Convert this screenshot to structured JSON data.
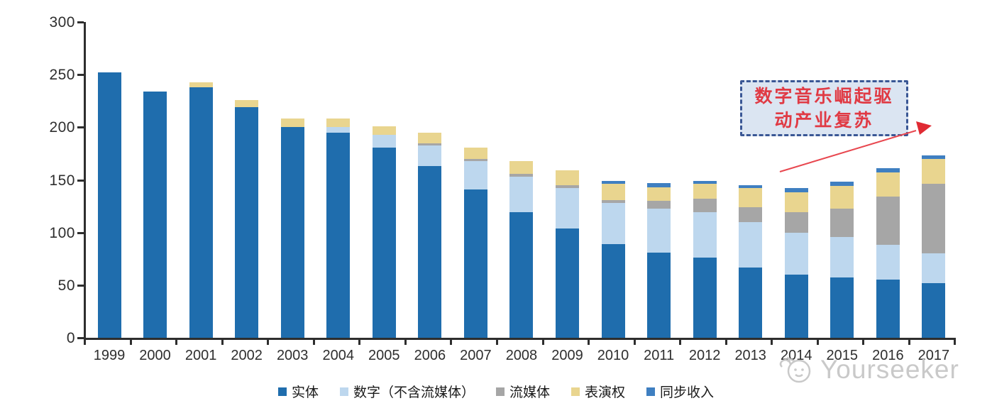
{
  "chart_data": {
    "type": "bar",
    "stacked": true,
    "title": "",
    "xlabel": "",
    "ylabel": "",
    "ylim": [
      0,
      300
    ],
    "yticks": [
      0,
      50,
      100,
      150,
      200,
      250,
      300
    ],
    "grid": false,
    "legend_position": "bottom",
    "categories": [
      "1999",
      "2000",
      "2001",
      "2002",
      "2003",
      "2004",
      "2005",
      "2006",
      "2007",
      "2008",
      "2009",
      "2010",
      "2011",
      "2012",
      "2013",
      "2014",
      "2015",
      "2016",
      "2017"
    ],
    "series": [
      {
        "name": "实体",
        "color": "#1f6dad",
        "values": [
          252,
          234,
          238,
          219,
          200,
          195,
          181,
          163,
          141,
          119,
          104,
          89,
          81,
          76,
          67,
          60,
          57,
          55,
          52
        ]
      },
      {
        "name": "数字（不含流媒体）",
        "color": "#bdd7ee",
        "values": [
          0,
          0,
          0,
          0,
          0,
          5,
          12,
          20,
          27,
          34,
          38,
          39,
          42,
          43,
          43,
          40,
          39,
          33,
          28
        ]
      },
      {
        "name": "流媒体",
        "color": "#a6a6a6",
        "values": [
          0,
          0,
          0,
          0,
          0,
          0,
          0,
          2,
          2,
          3,
          3,
          3,
          7,
          13,
          14,
          19,
          27,
          46,
          66
        ]
      },
      {
        "name": "表演权",
        "color": "#e9d58f",
        "values": [
          0,
          0,
          5,
          7,
          8,
          8,
          8,
          10,
          11,
          12,
          14,
          15,
          13,
          14,
          18,
          19,
          21,
          23,
          24
        ]
      },
      {
        "name": "同步收入",
        "color": "#3f7fc1",
        "values": [
          0,
          0,
          0,
          0,
          0,
          0,
          0,
          0,
          0,
          0,
          0,
          3,
          4,
          3,
          3,
          4,
          4,
          4,
          3
        ]
      }
    ],
    "annotation": "数字音乐崛起驱动产业复苏"
  },
  "annotation": {
    "line1": "数字音乐崛起驱",
    "line2": "动产业复苏",
    "text_color": "#e03a44",
    "box_border_color": "#3a5795",
    "box_fill_color": "#dbe5f2",
    "arrow_color": "#e8474f"
  },
  "watermark": {
    "text": "Yourseeker"
  }
}
